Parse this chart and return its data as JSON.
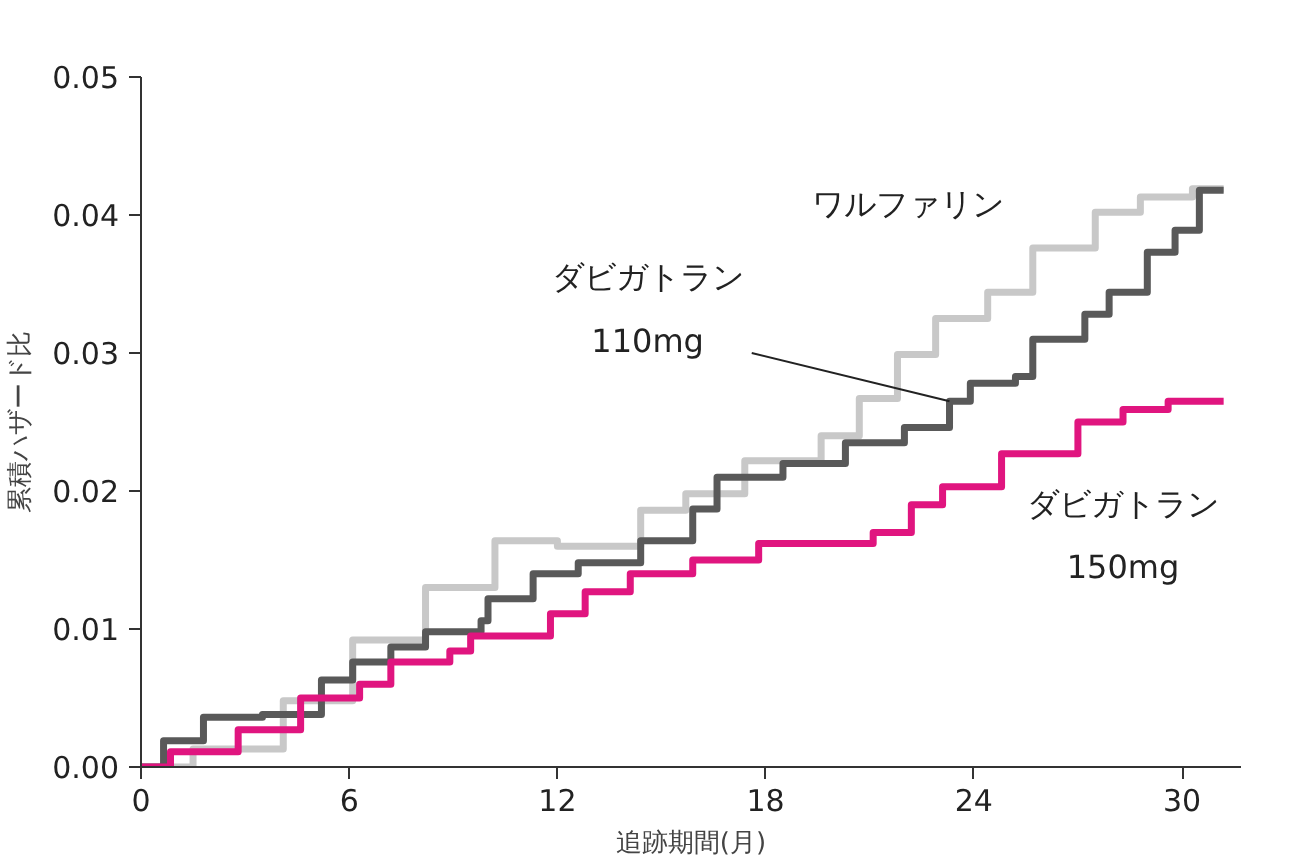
{
  "chart_data": {
    "type": "step",
    "xlabel": "追跡期間(月)",
    "ylabel": "累積ハザード比",
    "xlim": [
      0,
      31.7
    ],
    "ylim": [
      0,
      0.05
    ],
    "xticks": [
      0,
      6,
      12,
      18,
      24,
      30
    ],
    "yticks": [
      {
        "value": 0,
        "label": "0.00"
      },
      {
        "value": 0.01,
        "label": "0.01"
      },
      {
        "value": 0.02,
        "label": "0.02"
      },
      {
        "value": 0.03,
        "label": "0.03"
      },
      {
        "value": 0.04,
        "label": "0.04"
      },
      {
        "value": 0.05,
        "label": "0.05"
      }
    ],
    "annotations": [
      {
        "text": "ダビガトラン\n110mg",
        "x": 23.3,
        "y": 0.0265
      }
    ],
    "grid": false,
    "marker": "none",
    "line_style": "solid",
    "series": [
      {
        "name": "ワルファリン",
        "color": "#c8c8c8",
        "x": [
          0,
          1.5,
          4.1,
          6.1,
          8.2,
          10.2,
          12,
          14.4,
          15.7,
          17.4,
          19.6,
          20.7,
          21.8,
          22.9,
          24.4,
          25.7,
          27.5,
          28.8,
          30.3,
          31.2
        ],
        "values": [
          0,
          0.0013,
          0.0048,
          0.0092,
          0.013,
          0.0164,
          0.016,
          0.0186,
          0.0198,
          0.0222,
          0.024,
          0.0267,
          0.0299,
          0.0325,
          0.0344,
          0.0376,
          0.0402,
          0.0413,
          0.0419,
          0.0419
        ]
      },
      {
        "color": "#595959",
        "x": [
          0,
          0.65,
          1.8,
          3.5,
          5.2,
          6.1,
          7.2,
          8.2,
          9.8,
          10,
          11.3,
          12.6,
          14.4,
          15.9,
          16.6,
          18.5,
          20.3,
          22,
          23.3,
          23.9,
          25.2,
          25.7,
          27.2,
          27.9,
          29,
          29.8,
          30.5,
          31.2
        ],
        "values": [
          0,
          0.0019,
          0.0036,
          0.0038,
          0.0063,
          0.0076,
          0.0087,
          0.0098,
          0.0106,
          0.0122,
          0.014,
          0.0148,
          0.0164,
          0.0187,
          0.021,
          0.022,
          0.0235,
          0.0246,
          0.0265,
          0.0278,
          0.0283,
          0.031,
          0.0328,
          0.0344,
          0.0373,
          0.0389,
          0.0418,
          0.0418
        ]
      },
      {
        "name": "ダビガトラン\n150mg",
        "color": "#e0157f",
        "x": [
          0,
          0.85,
          2.8,
          4.6,
          6.3,
          7.2,
          8.9,
          9.5,
          11.8,
          12.8,
          14.1,
          15.9,
          17.8,
          21.1,
          22.2,
          23.1,
          24.8,
          27,
          28.3,
          29.6,
          31.2
        ],
        "values": [
          0,
          0.0011,
          0.0027,
          0.005,
          0.006,
          0.0076,
          0.0084,
          0.0095,
          0.0111,
          0.0127,
          0.014,
          0.015,
          0.0162,
          0.017,
          0.019,
          0.0203,
          0.0227,
          0.025,
          0.0259,
          0.0265,
          0.0265
        ]
      }
    ]
  }
}
